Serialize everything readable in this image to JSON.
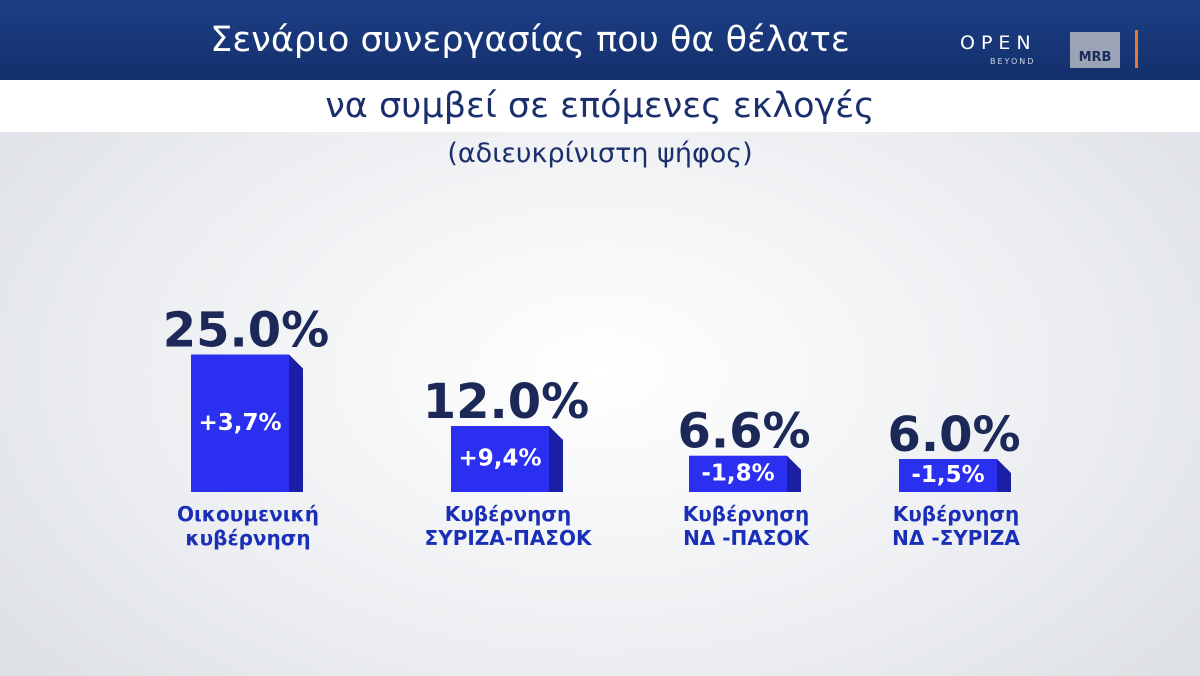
{
  "branding": {
    "channel": "OPEN",
    "tagline": "BEYOND",
    "pollster": "MRB"
  },
  "chart_data": {
    "type": "bar",
    "title": "Σενάριο συνεργασίας που θα θέλατε",
    "title_line2": "να συμβεί σε επόμενες εκλογές",
    "subtitle": "(αδιευκρίνιστη ψήφος)",
    "categories": [
      "Οικουμενική κυβέρνηση",
      "Κυβέρνηση ΣΥΡΙΖΑ-ΠΑΣΟΚ",
      "Κυβέρνηση ΝΔ -ΠΑΣΟΚ",
      "Κυβέρνηση ΝΔ -ΣΥΡΙΖΑ"
    ],
    "values": [
      25.0,
      12.0,
      6.6,
      6.0
    ],
    "value_labels": [
      "25.0%",
      "12.0%",
      "6.6%",
      "6.0%"
    ],
    "changes": [
      3.7,
      9.4,
      -1.8,
      -1.5
    ],
    "change_labels": [
      "+3,7%",
      "+9,4%",
      "-1,8%",
      "-1,5%"
    ],
    "color": "#2b2ff0"
  }
}
